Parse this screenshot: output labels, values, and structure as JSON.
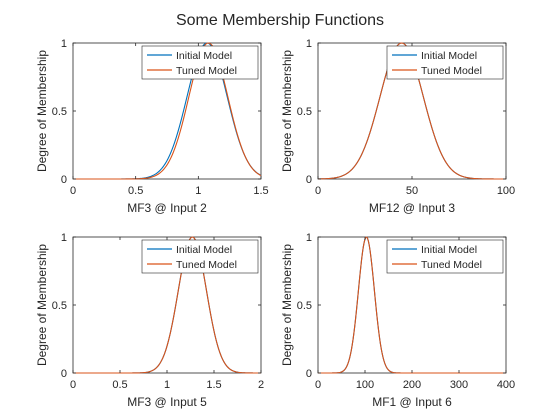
{
  "figure": {
    "title": "Some Membership Functions",
    "background": "#ffffff"
  },
  "colors": {
    "initial": "#0072BD",
    "tuned": "#D95319",
    "axis": "#262626"
  },
  "chart_data": [
    {
      "type": "line",
      "xlabel": "MF3 @ Input 2",
      "ylabel": "Degree of Membership",
      "xlim": [
        0,
        1.5
      ],
      "ylim": [
        0,
        1
      ],
      "xticks": [
        0,
        0.5,
        1,
        1.5
      ],
      "xtick_labels": [
        "0",
        "0.5",
        "1",
        "1.5"
      ],
      "yticks": [
        0,
        0.5,
        1
      ],
      "ytick_labels": [
        "0",
        "0.5",
        "1"
      ],
      "legend": "top-right",
      "series": [
        {
          "name": "Initial Model",
          "color": "#0072BD",
          "mf": "gaussian",
          "center": 1.07,
          "sigma": 0.16
        },
        {
          "name": "Tuned Model",
          "color": "#D95319",
          "mf": "gaussian",
          "center": 1.08,
          "sigma": 0.155
        }
      ]
    },
    {
      "type": "line",
      "xlabel": "MF12 @ Input 3",
      "ylabel": "Degree of Membership",
      "xlim": [
        0,
        100
      ],
      "ylim": [
        0,
        1
      ],
      "xticks": [
        0,
        50,
        100
      ],
      "xtick_labels": [
        "0",
        "50",
        "100"
      ],
      "yticks": [
        0,
        0.5,
        1
      ],
      "ytick_labels": [
        "0",
        "0.5",
        "1"
      ],
      "legend": "top-right",
      "series": [
        {
          "name": "Initial Model",
          "color": "#0072BD",
          "mf": "gaussian",
          "center": 44.5,
          "sigma": 11.5
        },
        {
          "name": "Tuned Model",
          "color": "#D95319",
          "mf": "gaussian",
          "center": 44.5,
          "sigma": 11.5
        }
      ]
    },
    {
      "type": "line",
      "xlabel": "MF3 @ Input 5",
      "ylabel": "Degree of Membership",
      "xlim": [
        0,
        2
      ],
      "ylim": [
        0,
        1
      ],
      "xticks": [
        0,
        0.5,
        1,
        1.5,
        2
      ],
      "xtick_labels": [
        "0",
        "0.5",
        "1",
        "1.5",
        "2"
      ],
      "yticks": [
        0,
        0.5,
        1
      ],
      "ytick_labels": [
        "0",
        "0.5",
        "1"
      ],
      "legend": "top-right",
      "series": [
        {
          "name": "Initial Model",
          "color": "#0072BD",
          "mf": "gaussian",
          "center": 1.27,
          "sigma": 0.15
        },
        {
          "name": "Tuned Model",
          "color": "#D95319",
          "mf": "gaussian",
          "center": 1.27,
          "sigma": 0.15
        }
      ]
    },
    {
      "type": "line",
      "xlabel": "MF1 @ Input 6",
      "ylabel": "Degree of Membership",
      "xlim": [
        0,
        400
      ],
      "ylim": [
        0,
        1
      ],
      "xticks": [
        0,
        100,
        200,
        300,
        400
      ],
      "xtick_labels": [
        "0",
        "100",
        "200",
        "300",
        "400"
      ],
      "yticks": [
        0,
        0.5,
        1
      ],
      "ytick_labels": [
        "0",
        "0.5",
        "1"
      ],
      "legend": "top-right",
      "series": [
        {
          "name": "Initial Model",
          "color": "#0072BD",
          "mf": "gaussian",
          "center": 103,
          "sigma": 17
        },
        {
          "name": "Tuned Model",
          "color": "#D95319",
          "mf": "gaussian",
          "center": 103,
          "sigma": 17
        }
      ]
    }
  ]
}
